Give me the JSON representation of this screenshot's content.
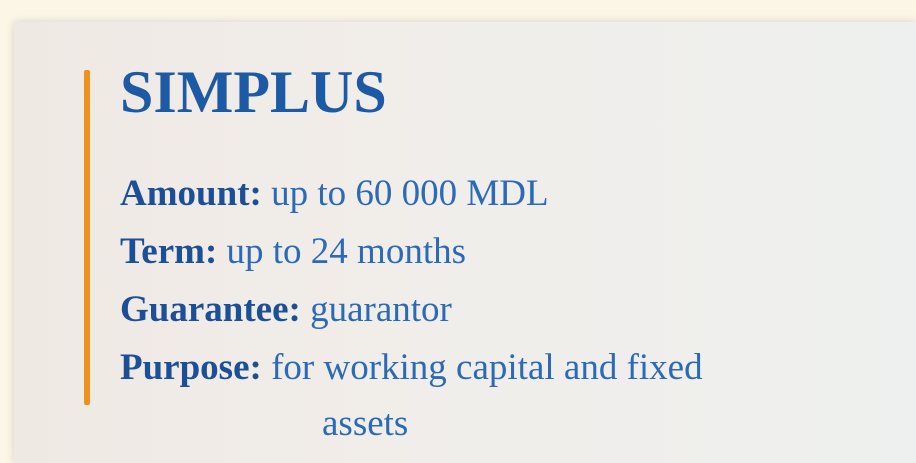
{
  "title": "SIMPLUS",
  "items": [
    {
      "label": "Amount:",
      "text": "up to 60 000 MDL"
    },
    {
      "label": "Term:",
      "text": "up to 24 months"
    },
    {
      "label": "Guarantee:",
      "text": "guarantor"
    },
    {
      "label": "Purpose:",
      "text": "for working capital and fixed",
      "continuation": "assets"
    }
  ]
}
